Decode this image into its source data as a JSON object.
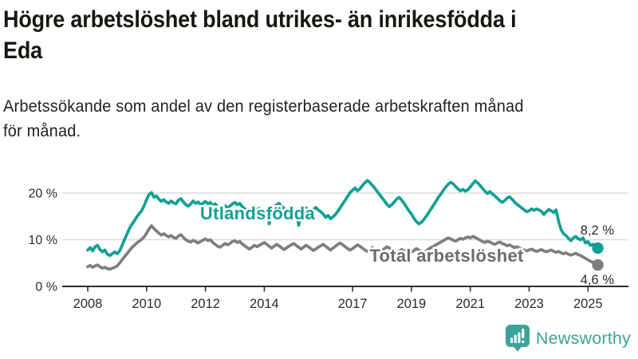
{
  "header": {
    "title": "Högre arbetslöshet bland utrikes- än inrikesfödda i Eda",
    "title_lines": [
      "Högre arbetslöshet bland utrikes- än inrikesfödda i",
      "Eda"
    ],
    "subtitle": "Arbetssökande som andel av den registerbaserade arbetskraften månad för månad.",
    "subtitle_lines": [
      "Arbetssökande som andel av den registerbaserade arbetskraften månad",
      "för månad."
    ]
  },
  "chart_data": {
    "type": "line",
    "x_unit": "month",
    "x_start_year": 2008,
    "x_end": "2025-05",
    "ylim": [
      0,
      24
    ],
    "grid": true,
    "x_ticks": [
      2008,
      2010,
      2012,
      2014,
      2017,
      2019,
      2021,
      2023,
      2025
    ],
    "y_ticks": [
      {
        "label": "0 %",
        "value": 0
      },
      {
        "label": "10 %",
        "value": 10
      },
      {
        "label": "20 %",
        "value": 20
      }
    ],
    "series": [
      {
        "name": "Utlandsfödda",
        "color": "#12a094",
        "label_color": "#12a094",
        "end_label": "8,2 %",
        "end_value": 8.2,
        "values": [
          7.8,
          8.3,
          7.6,
          8.5,
          8.8,
          7.9,
          7.4,
          7.8,
          6.9,
          6.6,
          7.0,
          7.4,
          7.0,
          7.6,
          8.8,
          10.0,
          11.2,
          12.4,
          13.3,
          14.0,
          14.9,
          15.6,
          16.2,
          17.3,
          18.6,
          19.7,
          20.1,
          19.1,
          19.4,
          18.7,
          18.2,
          18.6,
          18.1,
          17.8,
          18.3,
          17.9,
          17.7,
          18.5,
          18.8,
          18.1,
          17.5,
          17.2,
          17.7,
          18.3,
          17.8,
          18.1,
          17.5,
          17.8,
          18.2,
          17.7,
          18.0,
          17.3,
          17.7,
          17.0,
          16.5,
          16.9,
          17.3,
          16.8,
          17.2,
          17.7,
          18.0,
          17.5,
          17.8,
          17.1,
          16.7,
          16.1,
          15.7,
          16.3,
          16.8,
          16.4,
          16.7,
          16.2,
          15.9,
          16.5,
          13.4,
          16.1,
          17.0,
          17.5,
          17.8,
          17.2,
          16.7,
          16.3,
          16.6,
          16.1,
          15.8,
          16.2,
          13.1,
          15.7,
          16.3,
          16.8,
          16.4,
          15.9,
          16.5,
          16.9,
          16.4,
          16.0,
          15.5,
          14.8,
          15.2,
          14.5,
          14.9,
          15.4,
          16.1,
          16.9,
          17.7,
          18.5,
          19.3,
          20.1,
          20.6,
          21.1,
          20.5,
          20.9,
          21.6,
          22.2,
          22.7,
          22.3,
          21.7,
          21.1,
          20.4,
          19.7,
          19.0,
          18.3,
          17.6,
          17.1,
          17.5,
          18.1,
          18.7,
          19.1,
          18.5,
          17.8,
          17.0,
          16.2,
          15.5,
          14.6,
          13.9,
          13.4,
          13.7,
          14.3,
          15.0,
          15.8,
          16.6,
          17.4,
          18.2,
          19.1,
          19.8,
          20.6,
          21.3,
          21.9,
          22.3,
          22.0,
          21.4,
          20.9,
          20.5,
          20.8,
          20.4,
          20.7,
          21.3,
          22.0,
          22.6,
          22.2,
          21.6,
          21.0,
          20.4,
          19.9,
          20.3,
          19.8,
          19.4,
          18.9,
          18.4,
          18.0,
          18.4,
          18.9,
          19.2,
          18.7,
          18.1,
          17.6,
          17.2,
          16.8,
          16.4,
          16.0,
          16.2,
          16.6,
          16.3,
          16.6,
          16.4,
          16.1,
          15.4,
          16.0,
          16.5,
          16.2,
          15.8,
          16.4,
          14.0,
          12.2,
          11.3,
          10.9,
          10.3,
          9.8,
          10.4,
          10.7,
          10.2,
          10.0,
          10.4,
          9.3,
          9.6,
          8.8,
          9.0,
          8.5,
          8.2
        ]
      },
      {
        "name": "Total arbetslöshet",
        "color": "#807d81",
        "label_color": "#6e6a70",
        "end_label": "4,6 %",
        "end_value": 4.6,
        "values": [
          4.2,
          4.5,
          4.1,
          4.4,
          4.6,
          4.2,
          3.9,
          4.1,
          3.8,
          3.7,
          3.9,
          4.1,
          4.4,
          5.0,
          5.7,
          6.4,
          7.0,
          7.7,
          8.3,
          8.8,
          9.3,
          9.7,
          10.1,
          10.6,
          11.4,
          12.3,
          13.0,
          12.4,
          11.9,
          11.4,
          11.0,
          11.3,
          10.9,
          10.6,
          10.9,
          10.5,
          10.3,
          10.8,
          11.1,
          10.5,
          10.0,
          9.7,
          9.5,
          9.9,
          9.6,
          9.3,
          9.6,
          9.9,
          10.2,
          9.8,
          10.0,
          9.4,
          9.0,
          8.6,
          8.4,
          8.8,
          9.2,
          8.9,
          9.2,
          9.6,
          9.8,
          9.4,
          9.6,
          9.1,
          8.7,
          8.3,
          8.0,
          8.4,
          8.8,
          8.5,
          8.8,
          9.1,
          9.4,
          9.0,
          8.6,
          8.2,
          8.6,
          9.0,
          8.7,
          8.3,
          7.9,
          8.2,
          8.6,
          8.9,
          9.2,
          8.8,
          8.4,
          8.0,
          8.4,
          8.8,
          8.5,
          8.1,
          7.7,
          8.0,
          8.4,
          8.7,
          9.0,
          8.6,
          8.2,
          7.8,
          8.2,
          8.6,
          9.0,
          9.3,
          8.9,
          8.5,
          8.1,
          7.8,
          8.1,
          8.5,
          8.9,
          8.6,
          8.2,
          7.8,
          7.5,
          7.9,
          8.3,
          8.0,
          7.7,
          7.4,
          7.7,
          8.1,
          8.5,
          8.2,
          7.8,
          7.4,
          7.1,
          7.5,
          7.9,
          7.6,
          7.3,
          7.0,
          7.3,
          7.7,
          8.1,
          7.8,
          7.5,
          7.2,
          7.6,
          8.0,
          8.3,
          8.6,
          8.9,
          9.2,
          9.5,
          9.8,
          10.1,
          10.4,
          10.2,
          9.9,
          9.7,
          10.0,
          10.3,
          10.1,
          10.4,
          10.6,
          10.4,
          10.7,
          10.5,
          10.2,
          9.9,
          9.6,
          9.4,
          9.7,
          9.5,
          9.2,
          9.0,
          9.3,
          9.5,
          9.2,
          9.0,
          8.7,
          8.9,
          8.6,
          8.3,
          8.5,
          8.2,
          8.0,
          7.8,
          7.6,
          7.8,
          8.0,
          7.7,
          7.5,
          7.7,
          7.9,
          7.6,
          7.4,
          7.6,
          7.8,
          7.5,
          7.3,
          7.5,
          7.2,
          7.0,
          7.2,
          6.9,
          6.7,
          6.9,
          7.1,
          6.8,
          6.6,
          6.3,
          6.0,
          5.7,
          5.4,
          5.1,
          4.8,
          4.6
        ]
      }
    ]
  },
  "footer": {
    "brand": "Newsworthy",
    "brand_color": "#3da29a"
  },
  "colors": {
    "teal": "#12a094",
    "gray_line": "#807d81",
    "grid": "#d9d9d9",
    "axis": "#2e2e2e",
    "text": "#2b2b2b"
  }
}
